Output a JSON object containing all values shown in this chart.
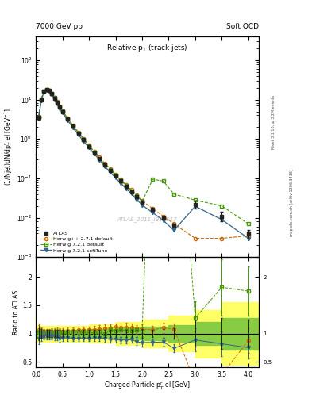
{
  "title_left": "7000 GeV pp",
  "title_right": "Soft QCD",
  "main_title": "Relative p$_{T}$ (track jets)",
  "ylabel_main": "(1/Njet)dN/dp$^{r}_{T}$ el [GeV$^{-1}$]",
  "ylabel_ratio": "Ratio to ATLAS",
  "xlabel": "Charged Particle p$^{r}_{T}$ el [GeV]",
  "right_label_top": "Rivet 3.1.10, ≥ 3.2M events",
  "right_label_bottom": "mcplots.cern.ch [arXiv:1306.3436]",
  "watermark": "ATLAS_2011_I919017",
  "atlas_x": [
    0.05,
    0.1,
    0.15,
    0.2,
    0.25,
    0.3,
    0.35,
    0.4,
    0.45,
    0.5,
    0.6,
    0.7,
    0.8,
    0.9,
    1.0,
    1.1,
    1.2,
    1.3,
    1.4,
    1.5,
    1.6,
    1.7,
    1.8,
    1.9,
    2.0,
    2.2,
    2.4,
    2.6,
    3.0,
    3.5,
    4.0
  ],
  "atlas_y": [
    3.5,
    10.0,
    16.0,
    18.0,
    17.0,
    14.0,
    11.0,
    8.5,
    6.5,
    5.0,
    3.2,
    2.1,
    1.4,
    0.95,
    0.65,
    0.45,
    0.32,
    0.22,
    0.16,
    0.115,
    0.085,
    0.062,
    0.046,
    0.034,
    0.025,
    0.016,
    0.01,
    0.0065,
    0.022,
    0.011,
    0.004
  ],
  "atlas_yerr": [
    0.4,
    0.8,
    1.0,
    1.1,
    1.0,
    0.9,
    0.7,
    0.55,
    0.4,
    0.3,
    0.19,
    0.12,
    0.08,
    0.055,
    0.038,
    0.026,
    0.019,
    0.013,
    0.01,
    0.007,
    0.005,
    0.004,
    0.003,
    0.002,
    0.002,
    0.001,
    0.0008,
    0.0006,
    0.005,
    0.003,
    0.001
  ],
  "hwpp_x": [
    0.05,
    0.1,
    0.15,
    0.2,
    0.25,
    0.3,
    0.35,
    0.4,
    0.45,
    0.5,
    0.6,
    0.7,
    0.8,
    0.9,
    1.0,
    1.1,
    1.2,
    1.3,
    1.4,
    1.5,
    1.6,
    1.7,
    1.8,
    1.9,
    2.0,
    2.2,
    2.4,
    2.6,
    3.0,
    3.5,
    4.0
  ],
  "hwpp_y": [
    3.7,
    10.3,
    16.3,
    18.3,
    17.3,
    14.3,
    11.3,
    8.8,
    6.7,
    5.15,
    3.35,
    2.2,
    1.48,
    1.01,
    0.69,
    0.48,
    0.345,
    0.24,
    0.175,
    0.128,
    0.094,
    0.069,
    0.051,
    0.037,
    0.027,
    0.017,
    0.011,
    0.007,
    0.003,
    0.003,
    0.0035
  ],
  "hw721_x": [
    0.05,
    0.1,
    0.15,
    0.2,
    0.25,
    0.3,
    0.35,
    0.4,
    0.45,
    0.5,
    0.6,
    0.7,
    0.8,
    0.9,
    1.0,
    1.1,
    1.2,
    1.3,
    1.4,
    1.5,
    1.6,
    1.7,
    1.8,
    1.9,
    2.0,
    2.2,
    2.4,
    2.6,
    3.0,
    3.5,
    4.0
  ],
  "hw721_y": [
    3.6,
    10.1,
    16.1,
    18.1,
    17.1,
    14.1,
    11.1,
    8.6,
    6.6,
    5.05,
    3.25,
    2.15,
    1.43,
    0.97,
    0.66,
    0.455,
    0.325,
    0.22,
    0.17,
    0.12,
    0.09,
    0.065,
    0.048,
    0.036,
    0.026,
    0.095,
    0.085,
    0.04,
    0.028,
    0.02,
    0.007
  ],
  "hw721st_x": [
    0.05,
    0.1,
    0.15,
    0.2,
    0.25,
    0.3,
    0.35,
    0.4,
    0.45,
    0.5,
    0.6,
    0.7,
    0.8,
    0.9,
    1.0,
    1.1,
    1.2,
    1.3,
    1.4,
    1.5,
    1.6,
    1.7,
    1.8,
    1.9,
    2.0,
    2.2,
    2.4,
    2.6,
    3.0,
    3.5,
    4.0
  ],
  "hw721st_y": [
    3.2,
    9.5,
    15.3,
    17.3,
    16.3,
    13.3,
    10.4,
    7.95,
    5.95,
    4.65,
    2.95,
    1.92,
    1.28,
    0.87,
    0.595,
    0.415,
    0.295,
    0.2,
    0.143,
    0.103,
    0.075,
    0.055,
    0.041,
    0.029,
    0.021,
    0.0135,
    0.0085,
    0.0048,
    0.0195,
    0.009,
    0.003
  ],
  "color_atlas": "#222222",
  "color_hwpp": "#cc6600",
  "color_hw721": "#449900",
  "color_hw721st": "#336688",
  "xlim": [
    0.0,
    4.2
  ],
  "ylim_main": [
    0.001,
    400
  ],
  "ylim_ratio": [
    0.4,
    2.35
  ],
  "ratio_yticks": [
    0.5,
    1.0,
    1.5,
    2.0
  ],
  "ratio_ytick_labels": [
    "0.5",
    "1",
    "1.5",
    "2"
  ],
  "band_bins": [
    0.0,
    0.5,
    1.0,
    1.5,
    2.0,
    2.5,
    3.0,
    3.5,
    4.25
  ],
  "band_green": [
    0.07,
    0.07,
    0.08,
    0.1,
    0.12,
    0.15,
    0.2,
    0.28
  ],
  "band_yellow": [
    0.14,
    0.14,
    0.16,
    0.2,
    0.25,
    0.32,
    0.42,
    0.55
  ]
}
